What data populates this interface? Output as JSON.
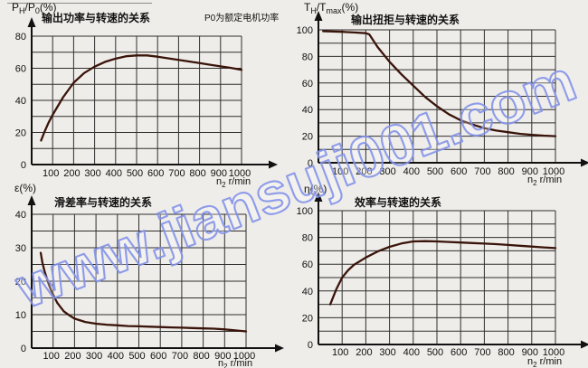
{
  "colors": {
    "background": "#efede9",
    "grid": "#2f2f2f",
    "axis": "#111111",
    "curve": "#3a140a",
    "text": "#111111",
    "watermark": "#8494ea"
  },
  "watermark": {
    "text": "www.jiansuji001.com"
  },
  "chart_data": [
    {
      "type": "line",
      "title": "输出功率与转速的关系",
      "note": "P0为额定电机功率",
      "ylabel_segments": [
        {
          "t": "P"
        },
        {
          "t": "H",
          "sub": true
        },
        {
          "t": "/P"
        },
        {
          "t": "0",
          "sub": true
        },
        {
          "t": "(%)"
        }
      ],
      "xlabel_segments": [
        {
          "t": "n"
        },
        {
          "t": "2",
          "sub": true
        },
        {
          "t": "  r/min"
        }
      ],
      "xlim": [
        0,
        1000
      ],
      "ylim": [
        0,
        80
      ],
      "xticks": [
        100,
        200,
        300,
        400,
        500,
        600,
        700,
        800,
        900,
        1000
      ],
      "yticks": [
        0,
        20,
        40,
        60,
        80
      ],
      "grid": true,
      "grid_x_step": 100,
      "grid_y_step": 10,
      "x": [
        45,
        60,
        80,
        100,
        150,
        200,
        250,
        300,
        350,
        400,
        450,
        500,
        550,
        600,
        650,
        700,
        750,
        800,
        850,
        900,
        950,
        1000
      ],
      "y": [
        15,
        20,
        26,
        31,
        42,
        51,
        57,
        61,
        64,
        66,
        67.5,
        68,
        68,
        67.2,
        66.2,
        65.2,
        64.2,
        63.2,
        62.2,
        61.2,
        60.2,
        59
      ]
    },
    {
      "type": "line",
      "title": "输出扭拒与转速的关系",
      "ylabel_segments": [
        {
          "t": "T"
        },
        {
          "t": "H",
          "sub": true
        },
        {
          "t": "/T"
        },
        {
          "t": "max",
          "sub": true
        },
        {
          "t": "(%)"
        }
      ],
      "xlabel_segments": [
        {
          "t": "n"
        },
        {
          "t": "2",
          "sub": true
        },
        {
          "t": "  r/min"
        }
      ],
      "xlim": [
        0,
        1000
      ],
      "ylim": [
        0,
        100
      ],
      "xticks": [
        100,
        200,
        300,
        400,
        500,
        600,
        700,
        800,
        900,
        1000
      ],
      "yticks": [
        0,
        20,
        40,
        60,
        80,
        100
      ],
      "grid": true,
      "grid_x_step": 100,
      "grid_y_step": 10,
      "x": [
        20,
        100,
        150,
        200,
        215,
        250,
        300,
        350,
        400,
        450,
        500,
        550,
        600,
        650,
        700,
        750,
        800,
        850,
        900,
        950,
        1000
      ],
      "y": [
        99,
        98.5,
        98,
        97.5,
        96.5,
        87,
        76,
        66.5,
        58,
        49.5,
        42.5,
        36.5,
        32,
        28.8,
        26,
        24.2,
        23,
        21.8,
        21,
        20.4,
        20
      ]
    },
    {
      "type": "line",
      "title": "滑差率与转速的关系",
      "ylabel_segments": [
        {
          "t": "ε(%)"
        }
      ],
      "xlabel_segments": [
        {
          "t": "n"
        },
        {
          "t": "2",
          "sub": true
        },
        {
          "t": "  r/min"
        }
      ],
      "xlim": [
        0,
        1000
      ],
      "ylim": [
        0,
        40
      ],
      "xticks": [
        100,
        200,
        300,
        400,
        500,
        600,
        700,
        800,
        900,
        1000
      ],
      "yticks": [
        0,
        10,
        20,
        30,
        40
      ],
      "grid": true,
      "grid_x_step": 100,
      "grid_y_step": 5,
      "x": [
        42,
        50,
        60,
        70,
        80,
        90,
        100,
        120,
        150,
        175,
        200,
        250,
        300,
        350,
        400,
        450,
        500,
        550,
        600,
        650,
        700,
        750,
        800,
        850,
        900,
        950,
        1000
      ],
      "y": [
        28.5,
        25.5,
        23,
        21,
        19,
        17.4,
        16,
        13.5,
        11,
        9.8,
        8.8,
        7.8,
        7.3,
        7.0,
        6.8,
        6.6,
        6.5,
        6.4,
        6.3,
        6.2,
        6.1,
        6.0,
        5.9,
        5.8,
        5.6,
        5.3,
        5.0
      ]
    },
    {
      "type": "line",
      "title": "效率与转速的关系",
      "ylabel_segments": [
        {
          "t": "η(%)"
        }
      ],
      "xlabel_segments": [
        {
          "t": "n"
        },
        {
          "t": "2",
          "sub": true
        },
        {
          "t": "  r/min"
        }
      ],
      "xlim": [
        0,
        1000
      ],
      "ylim": [
        0,
        100
      ],
      "xticks": [
        100,
        200,
        300,
        400,
        500,
        600,
        700,
        800,
        900,
        1000
      ],
      "yticks": [
        0,
        20,
        40,
        60,
        80,
        100
      ],
      "grid": true,
      "grid_x_step": 100,
      "grid_y_step": 10,
      "x": [
        50,
        75,
        100,
        125,
        150,
        200,
        250,
        300,
        350,
        400,
        450,
        500,
        550,
        600,
        650,
        700,
        750,
        800,
        850,
        900,
        950,
        1000
      ],
      "y": [
        30,
        41,
        50,
        55.5,
        59.5,
        65,
        69.5,
        73,
        75.5,
        77,
        77.2,
        77,
        76.6,
        76.2,
        75.8,
        75.4,
        75,
        74.4,
        73.8,
        73.2,
        72.6,
        72
      ]
    }
  ]
}
